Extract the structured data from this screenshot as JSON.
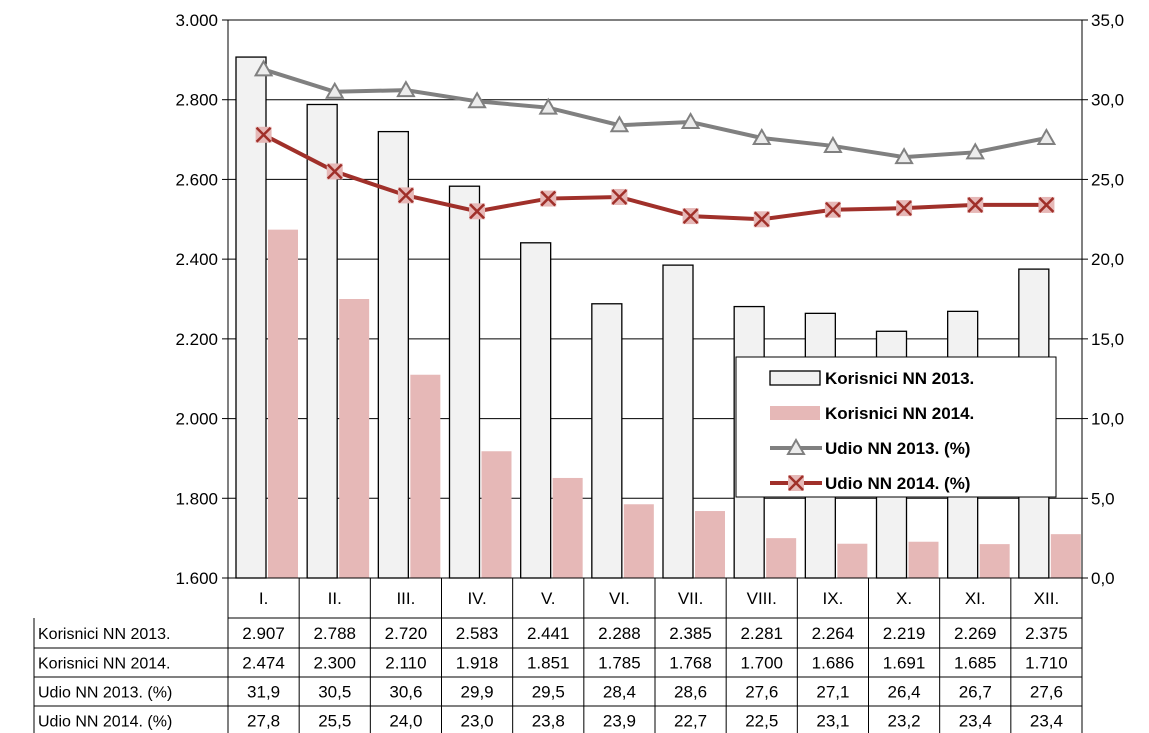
{
  "chart_data": {
    "type": "bar",
    "categories": [
      "I.",
      "II.",
      "III.",
      "IV.",
      "V.",
      "VI.",
      "VII.",
      "VIII.",
      "IX.",
      "X.",
      "XI.",
      "XII."
    ],
    "series": [
      {
        "name": "Korisnici NN 2013.",
        "kind": "bar",
        "axis": "left",
        "color": "#f2f2f2",
        "values": [
          2907,
          2788,
          2720,
          2583,
          2441,
          2288,
          2385,
          2281,
          2264,
          2219,
          2269,
          2375
        ],
        "labels": [
          "2.907",
          "2.788",
          "2.720",
          "2.583",
          "2.441",
          "2.288",
          "2.385",
          "2.281",
          "2.264",
          "2.219",
          "2.269",
          "2.375"
        ]
      },
      {
        "name": "Korisnici NN 2014.",
        "kind": "bar",
        "axis": "left",
        "color": "#e6b8b7",
        "values": [
          2474,
          2300,
          2110,
          1918,
          1851,
          1785,
          1768,
          1700,
          1686,
          1691,
          1685,
          1710
        ],
        "labels": [
          "2.474",
          "2.300",
          "2.110",
          "1.918",
          "1.851",
          "1.785",
          "1.768",
          "1.700",
          "1.686",
          "1.691",
          "1.685",
          "1.710"
        ]
      },
      {
        "name": "Udio NN 2013. (%)",
        "kind": "line",
        "axis": "right",
        "color": "#808080",
        "marker": "triangle",
        "values": [
          31.9,
          30.5,
          30.6,
          29.9,
          29.5,
          28.4,
          28.6,
          27.6,
          27.1,
          26.4,
          26.7,
          27.6
        ],
        "labels": [
          "31,9",
          "30,5",
          "30,6",
          "29,9",
          "29,5",
          "28,4",
          "28,6",
          "27,6",
          "27,1",
          "26,4",
          "26,7",
          "27,6"
        ]
      },
      {
        "name": "Udio NN 2014. (%)",
        "kind": "line",
        "axis": "right",
        "color": "#a0302a",
        "marker": "x",
        "values": [
          27.8,
          25.5,
          24.0,
          23.0,
          23.8,
          23.9,
          22.7,
          22.5,
          23.1,
          23.2,
          23.4,
          23.4
        ],
        "labels": [
          "27,8",
          "25,5",
          "24,0",
          "23,0",
          "23,8",
          "23,9",
          "22,7",
          "22,5",
          "23,1",
          "23,2",
          "23,4",
          "23,4"
        ]
      }
    ],
    "y_left": {
      "min": 1600,
      "max": 3000,
      "ticks": [
        1600,
        1800,
        2000,
        2200,
        2400,
        2600,
        2800,
        3000
      ],
      "tick_labels": [
        "1.600",
        "1.800",
        "2.000",
        "2.200",
        "2.400",
        "2.600",
        "2.800",
        "3.000"
      ]
    },
    "y_right": {
      "min": 0,
      "max": 35,
      "ticks": [
        0,
        5,
        10,
        15,
        20,
        25,
        30,
        35
      ],
      "tick_labels": [
        "0,0",
        "5,0",
        "10,0",
        "15,0",
        "20,0",
        "25,0",
        "30,0",
        "35,0"
      ]
    },
    "grid": true,
    "legend_position": "right-middle",
    "data_table": true
  }
}
